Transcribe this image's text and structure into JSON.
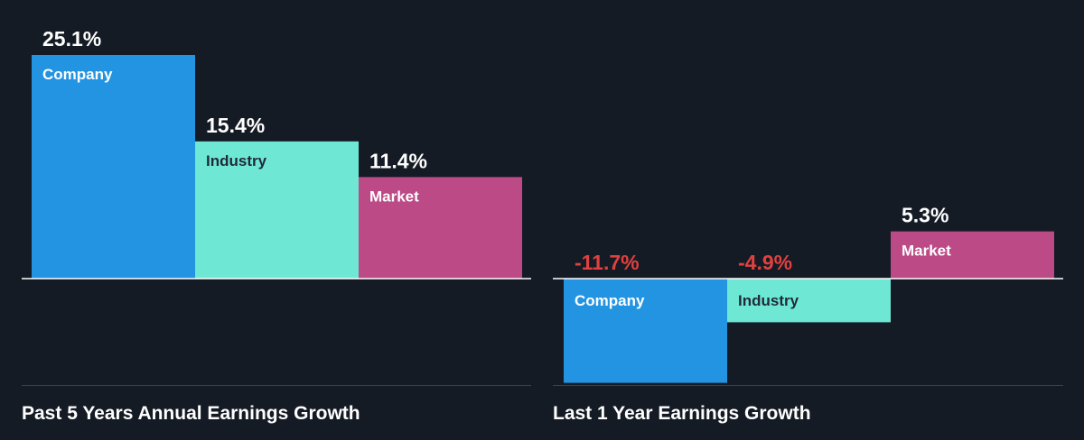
{
  "colors": {
    "background": "#151b24",
    "company": "#2394e2",
    "industry": "#6fe7d5",
    "market": "#bb4a87",
    "positive_text": "#ffffff",
    "negative_text": "#e0413f",
    "baseline": "#ffffff",
    "separator": "#3a424e",
    "dark_label": "#1f2a36",
    "light_label": "#ffffff"
  },
  "chart_data": [
    {
      "type": "bar",
      "title": "Past 5 Years Annual Earnings Growth",
      "categories": [
        "Company",
        "Industry",
        "Market"
      ],
      "values": [
        25.1,
        15.4,
        11.4
      ],
      "value_labels": [
        "25.1%",
        "15.4%",
        "11.4%"
      ],
      "ylim": [
        0,
        25.1
      ],
      "grid": false,
      "legend": "none"
    },
    {
      "type": "bar",
      "title": "Last 1 Year Earnings Growth",
      "categories": [
        "Company",
        "Industry",
        "Market"
      ],
      "values": [
        -11.7,
        -4.9,
        5.3
      ],
      "value_labels": [
        "-11.7%",
        "-4.9%",
        "5.3%"
      ],
      "ylim": [
        -11.7,
        25.1
      ],
      "grid": false,
      "legend": "none"
    }
  ]
}
